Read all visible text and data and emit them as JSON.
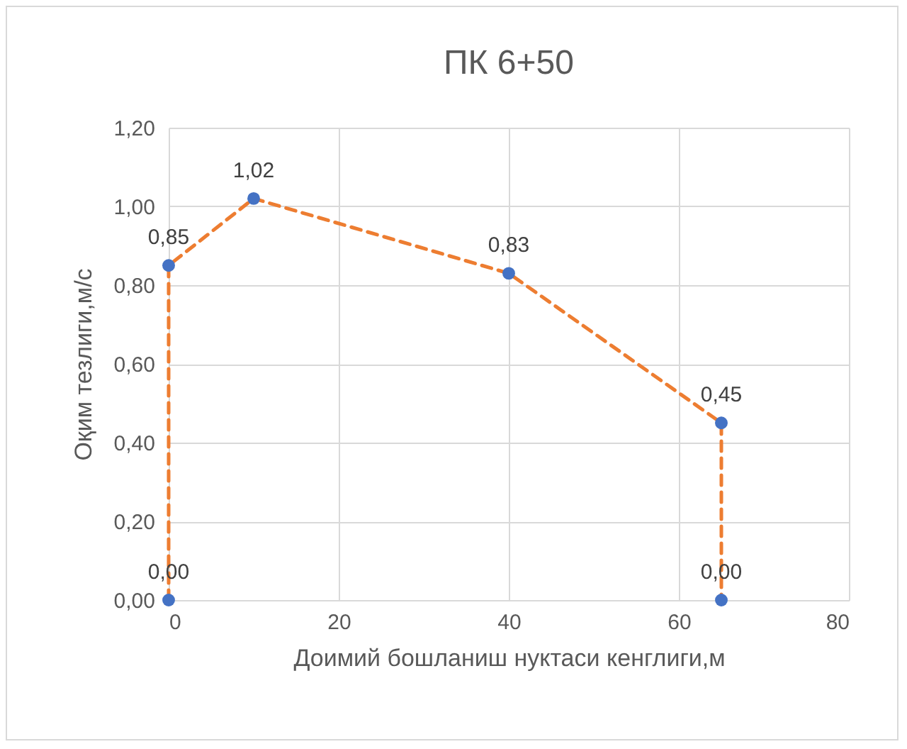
{
  "chart_data": {
    "type": "line",
    "title": "ПК 6+50",
    "xlabel": "Доимий бошланиш нуктаси кенглиги,м",
    "ylabel": "Оқим тезлиги,м/с",
    "x": [
      0,
      0,
      10,
      40,
      65,
      65
    ],
    "series": [
      {
        "color": "#ed7d31",
        "line_style": "dashed",
        "marker": "none",
        "values": [
          0,
          0.85,
          1.02,
          0.83,
          0.45,
          0
        ]
      },
      {
        "type": "scatter",
        "color": "#4472c4",
        "marker": "circle",
        "values": [
          0,
          0.85,
          1.02,
          0.83,
          0.45,
          0
        ],
        "value_labels": [
          "0,00",
          "0,85",
          "1,02",
          "0,83",
          "0,45",
          "0,00"
        ]
      }
    ],
    "xlim": [
      0,
      80
    ],
    "xticks": [
      0,
      20,
      40,
      60,
      80
    ],
    "ylim": [
      0,
      1.2
    ],
    "yticks": [
      {
        "value": 0,
        "label": "0,00"
      },
      {
        "value": 0.2,
        "label": "0,20"
      },
      {
        "value": 0.4,
        "label": "0,40"
      },
      {
        "value": 0.6,
        "label": "0,60"
      },
      {
        "value": 0.8,
        "label": "0,80"
      },
      {
        "value": 1,
        "label": "1,00"
      },
      {
        "value": 1.2,
        "label": "1,20"
      }
    ],
    "grid": true
  }
}
